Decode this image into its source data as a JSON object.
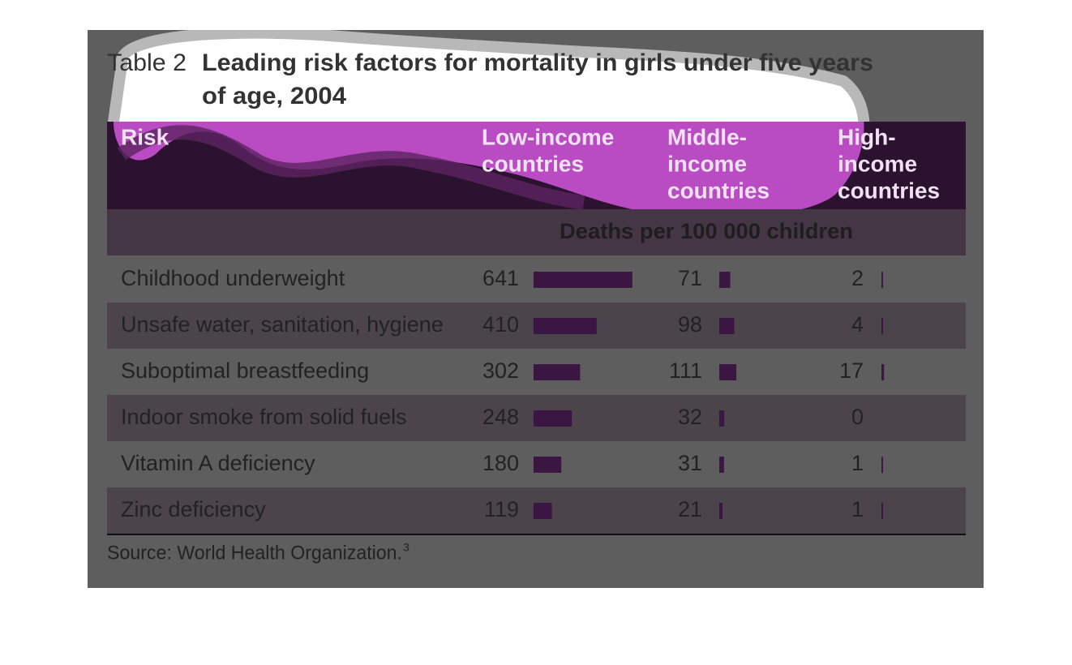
{
  "title": {
    "label": "Table 2",
    "lines": [
      "Leading risk factors for mortality in girls under five years",
      "of age, 2004"
    ]
  },
  "table": {
    "headers": [
      [
        "Risk"
      ],
      [
        "Low-income",
        "countries"
      ],
      [
        "Middle-",
        "income",
        "countries"
      ],
      [
        "High-",
        "income",
        "countries"
      ]
    ],
    "unit": "Deaths per 100 000 children",
    "rows": [
      [
        "Childhood underweight",
        641,
        71,
        2
      ],
      [
        "Unsafe water, sanitation, hygiene",
        410,
        98,
        4
      ],
      [
        "Suboptimal breastfeeding",
        302,
        111,
        17
      ],
      [
        "Indoor smoke from solid fuels",
        248,
        32,
        0
      ],
      [
        "Vitamin A deficiency",
        180,
        31,
        1
      ],
      [
        "Zinc deficiency",
        119,
        21,
        1
      ]
    ]
  },
  "source": {
    "text": "Source: World Health Organization.",
    "note": "3"
  }
}
